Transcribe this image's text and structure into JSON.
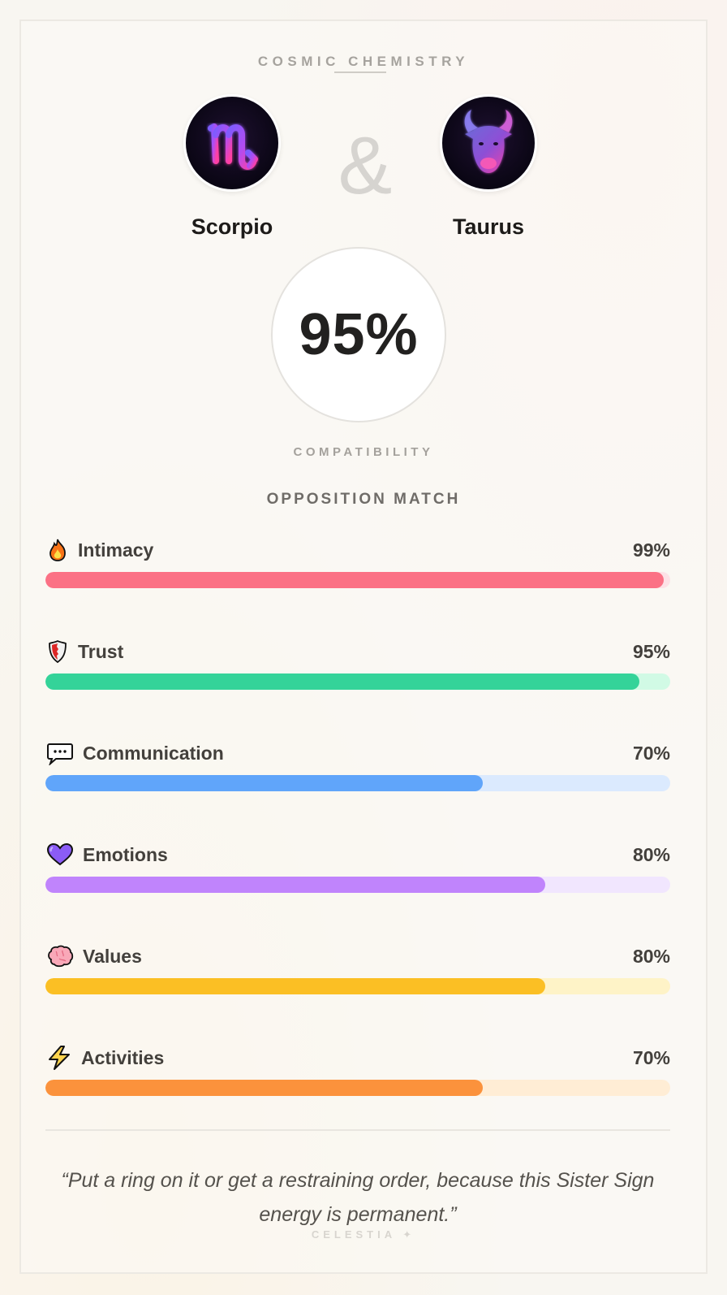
{
  "header": {
    "title": "COSMIC CHEMISTRY"
  },
  "signs": [
    {
      "name": "Scorpio",
      "icon": "scorpio-glyph-icon",
      "glyph": "♏"
    },
    {
      "name": "Taurus",
      "icon": "taurus-bull-icon",
      "glyph": "♉"
    }
  ],
  "connector": "&",
  "score": {
    "value": "95%",
    "label": "COMPATIBILITY"
  },
  "match_type": "OPPOSITION MATCH",
  "metrics": [
    {
      "label": "Intimacy",
      "value": "99%",
      "percent": 99,
      "icon": "fire-icon",
      "color": "#fb7185",
      "track": "#fde2e6"
    },
    {
      "label": "Trust",
      "value": "95%",
      "percent": 95,
      "icon": "shield-icon",
      "color": "#34d399",
      "track": "#d1fae5"
    },
    {
      "label": "Communication",
      "value": "70%",
      "percent": 70,
      "icon": "speech-bubble-icon",
      "color": "#60a5fa",
      "track": "#dbeafe"
    },
    {
      "label": "Emotions",
      "value": "80%",
      "percent": 80,
      "icon": "purple-heart-icon",
      "color": "#c084fc",
      "track": "#f1e6fe"
    },
    {
      "label": "Values",
      "value": "80%",
      "percent": 80,
      "icon": "brain-icon",
      "color": "#fbbf24",
      "track": "#fef3c7"
    },
    {
      "label": "Activities",
      "value": "70%",
      "percent": 70,
      "icon": "lightning-icon",
      "color": "#fb923c",
      "track": "#ffedd5"
    }
  ],
  "quote": "“Put a ring on it or get a restraining order, because this Sister Sign energy is permanent.”",
  "brand": "CELESTIA ✦"
}
